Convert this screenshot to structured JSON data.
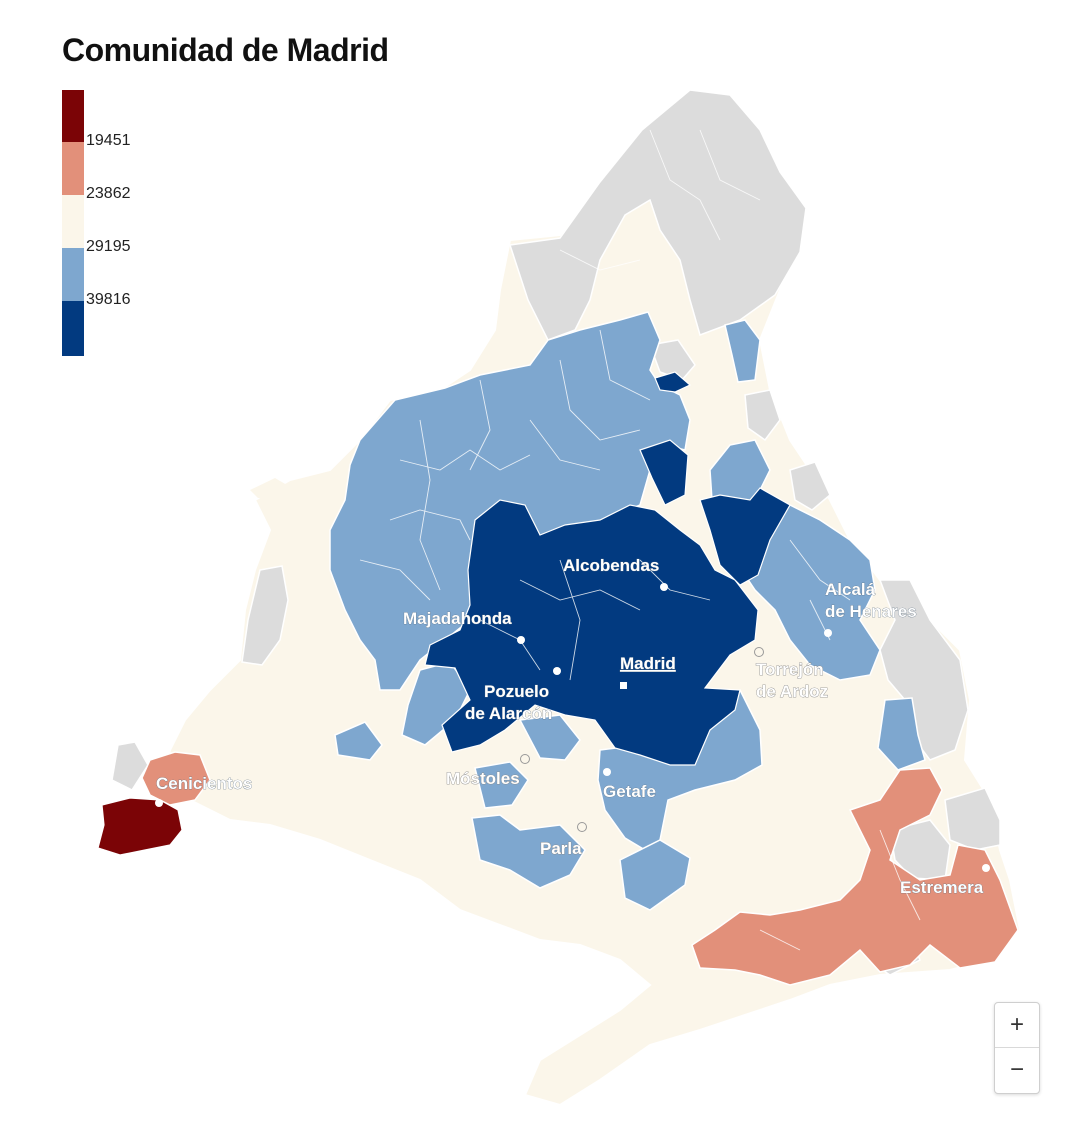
{
  "title": "Comunidad de Madrid",
  "legend": {
    "colors": [
      "#7b0406",
      "#e2907a",
      "#fbf6ea",
      "#7ea7cf",
      "#023a80"
    ],
    "ticks": [
      "19451",
      "23862",
      "29195",
      "39816"
    ]
  },
  "cities": {
    "alcobendas": "Alcobendas",
    "majadahonda": "Majadahonda",
    "madrid": "Madrid",
    "pozuelo_1": "Pozuelo",
    "pozuelo_2": "de Alarcón",
    "alcala_1": "Alcalá",
    "alcala_2": "de Henares",
    "torrejon_1": "Torrejón",
    "torrejon_2": "de Ardoz",
    "mostoles": "Móstoles",
    "getafe": "Getafe",
    "parla": "Parla",
    "cenicientos": "Cenicientos",
    "estremera": "Estremera"
  },
  "zoom": {
    "in": "+",
    "out": "−"
  }
}
